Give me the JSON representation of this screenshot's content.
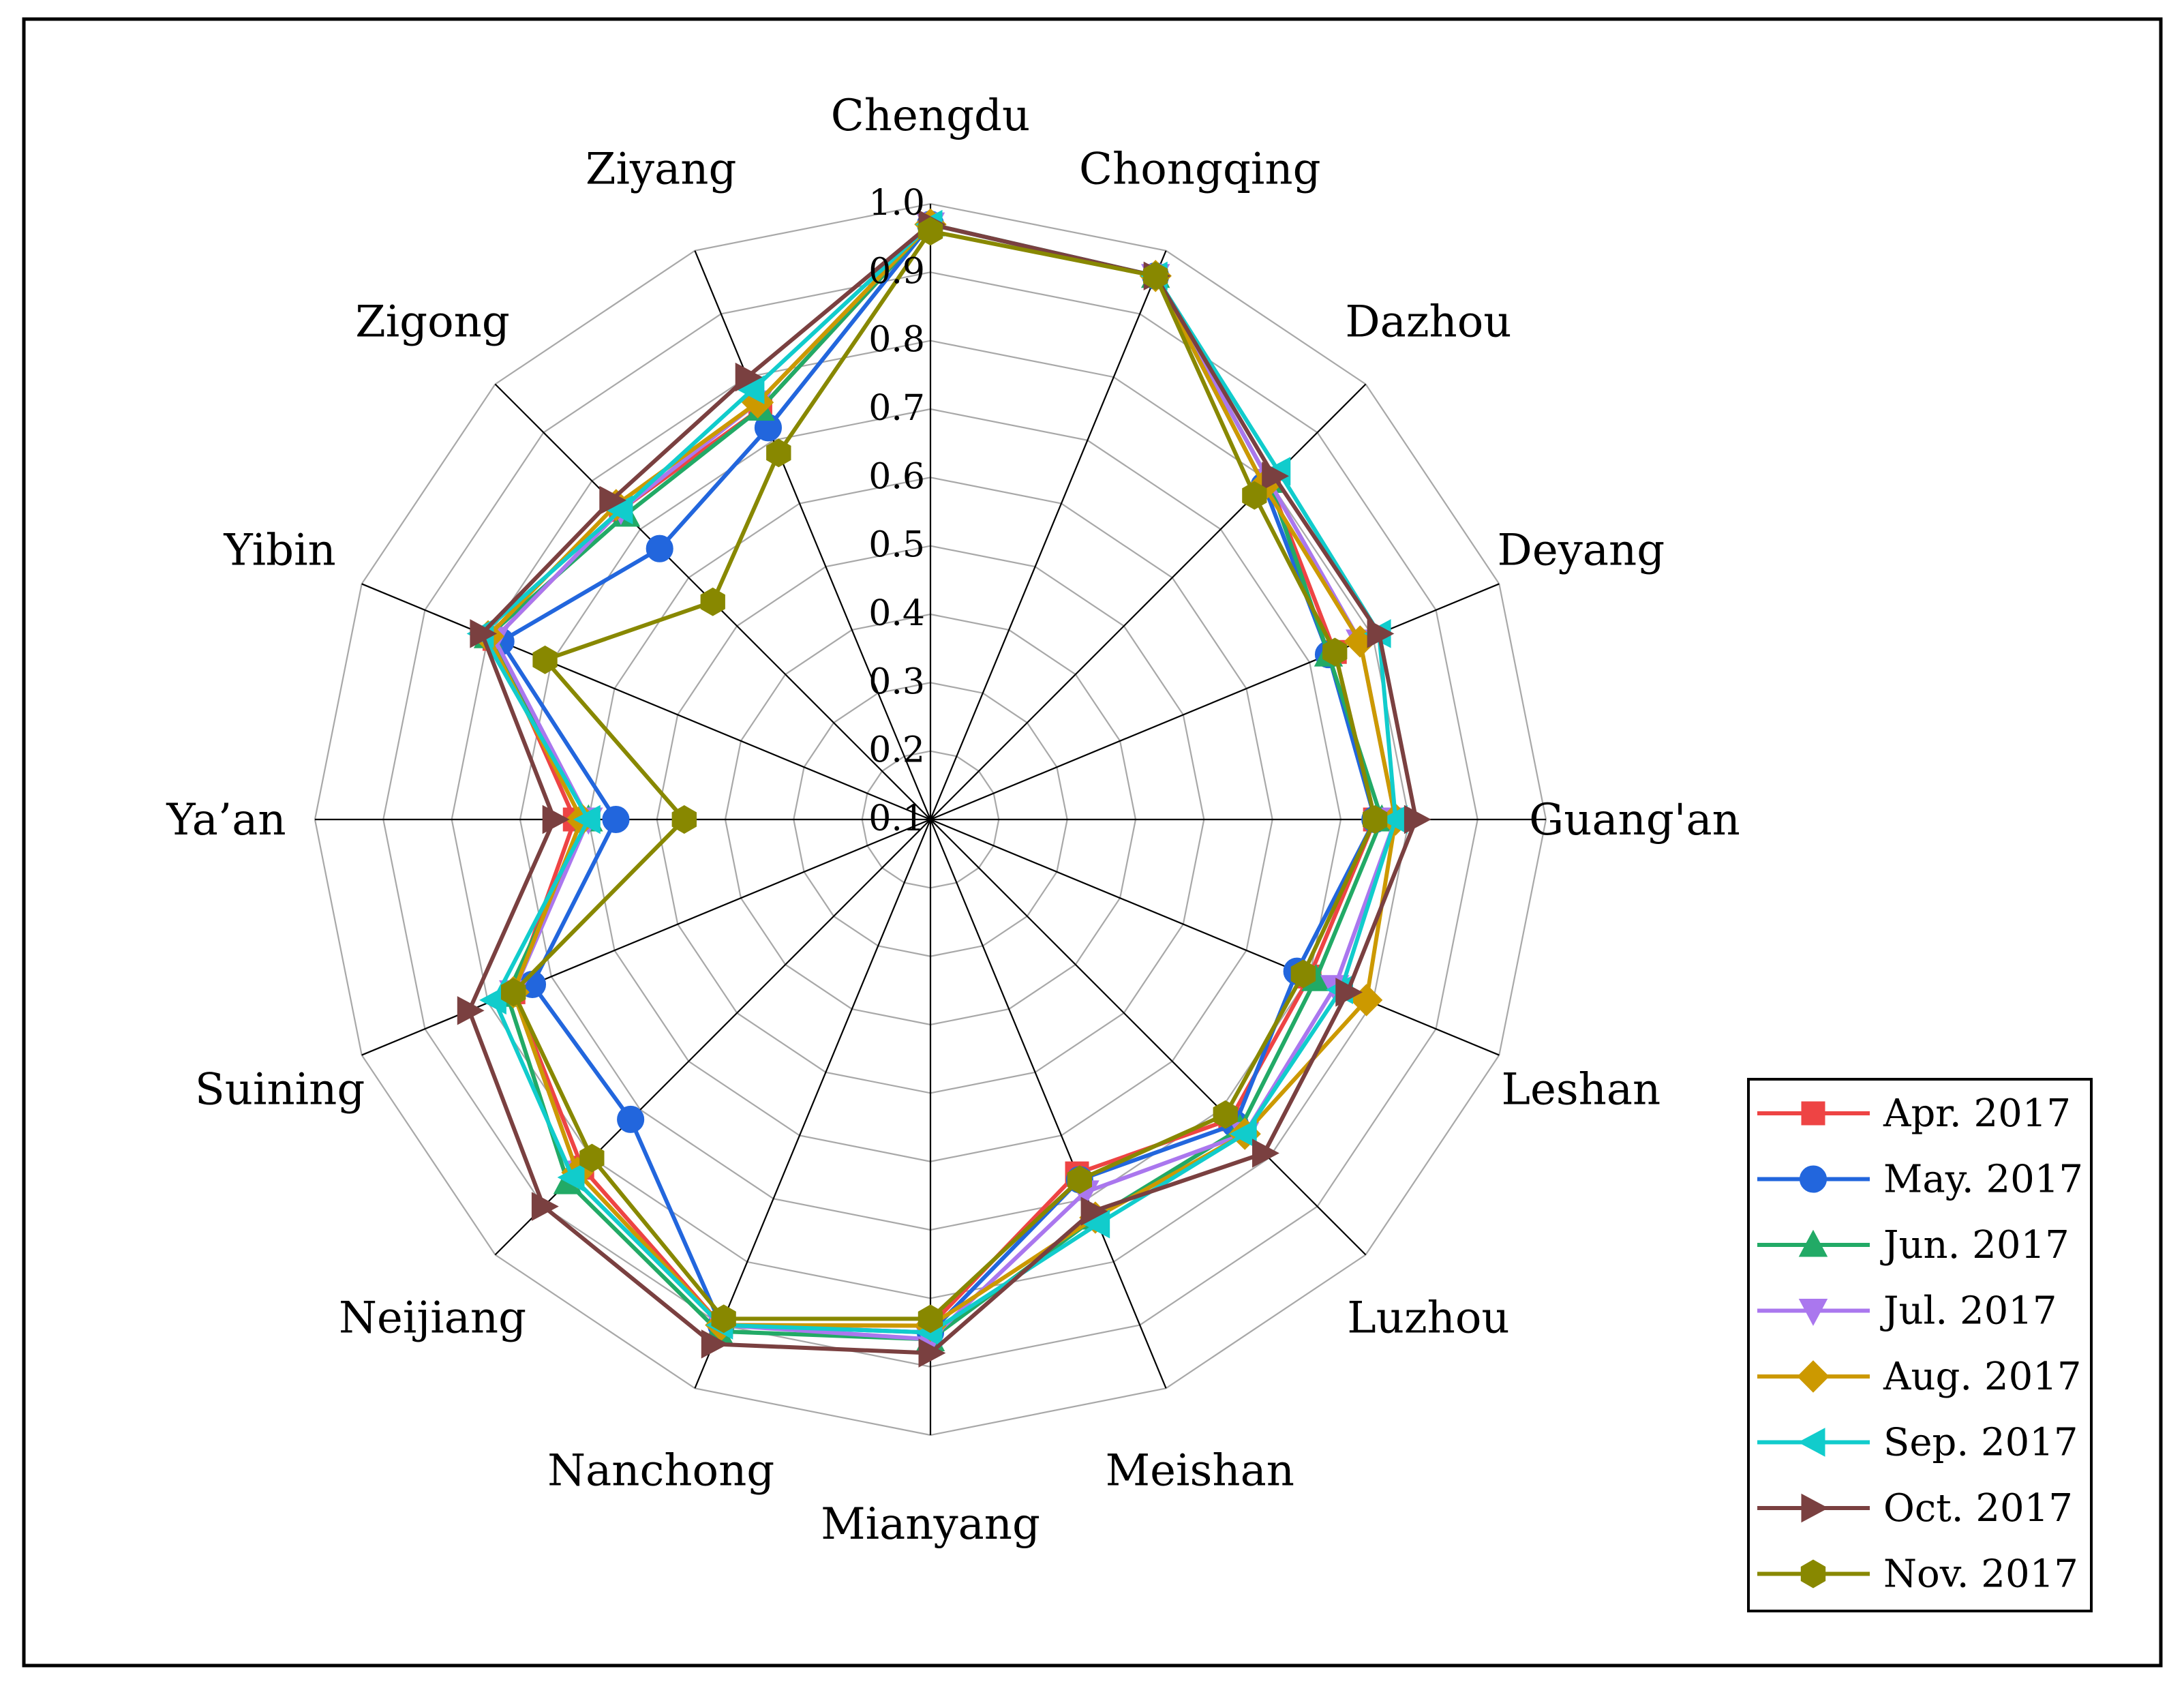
{
  "chart_data": {
    "type": "radar",
    "categories": [
      "Chengdu",
      "Chongqing",
      "Dazhou",
      "Deyang",
      "Guang'an",
      "Leshan",
      "Luzhou",
      "Meishan",
      "Mianyang",
      "Nanchong",
      "Neijiang",
      "Suining",
      "Ya’an",
      "Yibin",
      "Zigong",
      "Ziyang"
    ],
    "rlim": [
      0.1,
      1.0
    ],
    "ticks": [
      0.1,
      0.2,
      0.3,
      0.4,
      0.5,
      0.6,
      0.7,
      0.8,
      0.9,
      1.0
    ],
    "tick_labels": [
      "0.1",
      "0.2",
      "0.3",
      "0.4",
      "0.5",
      "0.6",
      "0.7",
      "0.8",
      "0.9",
      "1.0"
    ],
    "grid": true,
    "legend_position": "bottom-right",
    "series": [
      {
        "name": "Apr. 2017",
        "color": "#ee4444",
        "marker": "square",
        "values": [
          0.97,
          0.96,
          0.8,
          0.74,
          0.75,
          0.7,
          0.72,
          0.66,
          0.84,
          0.9,
          0.82,
          0.76,
          0.62,
          0.79,
          0.74,
          0.75
        ]
      },
      {
        "name": "May. 2017",
        "color": "#2266dd",
        "marker": "circle",
        "values": [
          0.97,
          0.96,
          0.79,
          0.73,
          0.75,
          0.68,
          0.73,
          0.67,
          0.85,
          0.9,
          0.72,
          0.73,
          0.56,
          0.78,
          0.66,
          0.72
        ]
      },
      {
        "name": "Jun. 2017",
        "color": "#22aa66",
        "marker": "triangle-up",
        "values": [
          0.97,
          0.96,
          0.8,
          0.73,
          0.76,
          0.71,
          0.74,
          0.73,
          0.86,
          0.91,
          0.85,
          0.77,
          0.6,
          0.8,
          0.73,
          0.75
        ]
      },
      {
        "name": "Jul. 2017",
        "color": "#aa77ee",
        "marker": "triangle-down",
        "values": [
          0.97,
          0.96,
          0.8,
          0.78,
          0.78,
          0.74,
          0.75,
          0.69,
          0.86,
          0.9,
          0.83,
          0.76,
          0.6,
          0.79,
          0.74,
          0.76
        ]
      },
      {
        "name": "Aug. 2017",
        "color": "#cc9900",
        "marker": "diamond",
        "values": [
          0.97,
          0.96,
          0.79,
          0.78,
          0.78,
          0.79,
          0.75,
          0.73,
          0.84,
          0.9,
          0.83,
          0.76,
          0.61,
          0.8,
          0.75,
          0.76
        ]
      },
      {
        "name": "Sep. 2017",
        "color": "#11cccc",
        "marker": "triangle-left",
        "values": [
          0.97,
          0.96,
          0.82,
          0.81,
          0.78,
          0.75,
          0.75,
          0.74,
          0.85,
          0.9,
          0.84,
          0.79,
          0.6,
          0.81,
          0.74,
          0.78
        ]
      },
      {
        "name": "Oct. 2017",
        "color": "#7a4040",
        "marker": "triangle-right",
        "values": [
          0.97,
          0.96,
          0.81,
          0.81,
          0.81,
          0.76,
          0.79,
          0.72,
          0.88,
          0.93,
          0.9,
          0.83,
          0.65,
          0.81,
          0.76,
          0.8
        ]
      },
      {
        "name": "Nov. 2017",
        "color": "#888800",
        "marker": "hexagon",
        "values": [
          0.96,
          0.96,
          0.77,
          0.74,
          0.75,
          0.69,
          0.71,
          0.67,
          0.83,
          0.89,
          0.8,
          0.76,
          0.46,
          0.71,
          0.55,
          0.68
        ]
      }
    ]
  }
}
